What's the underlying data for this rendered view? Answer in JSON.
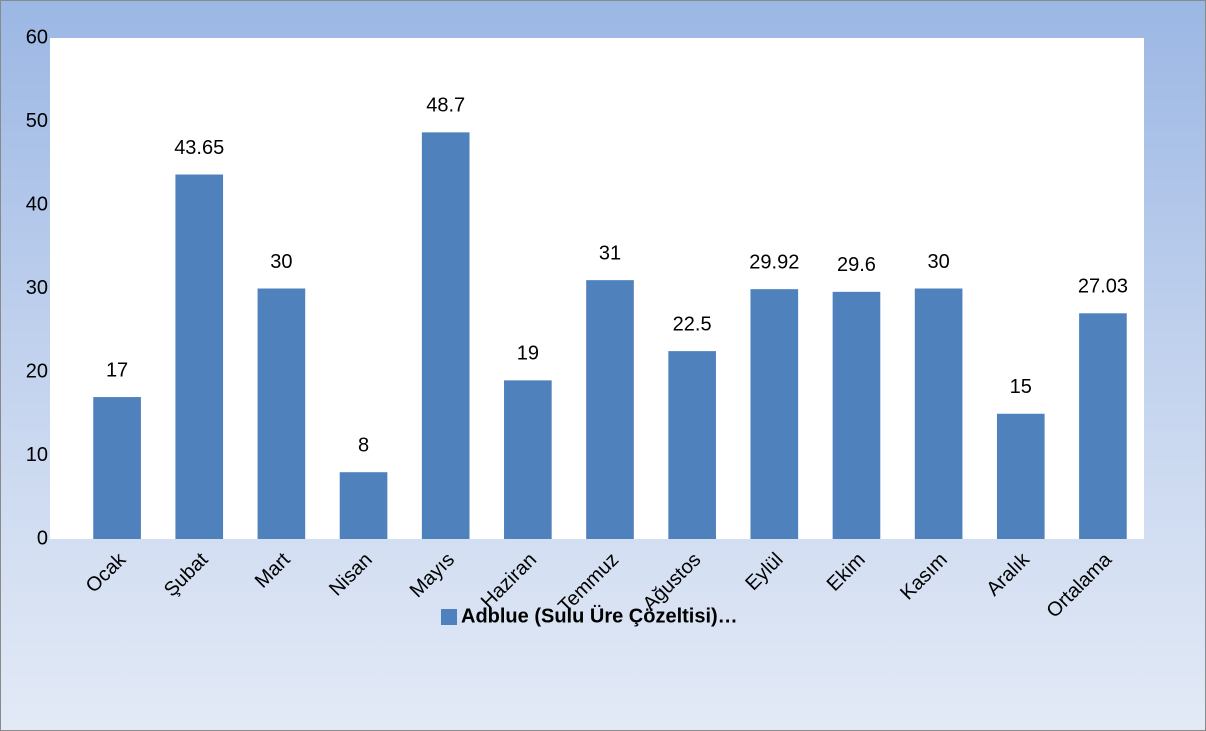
{
  "chart_data": {
    "type": "bar",
    "categories": [
      "Ocak",
      "Şubat",
      "Mart",
      "Nisan",
      "Mayıs",
      "Haziran",
      "Temmuz",
      "Ağustos",
      "Eylül",
      "Ekim",
      "Kasım",
      "Aralık",
      "Ortalama"
    ],
    "series": [
      {
        "name": "Adblue (Sulu Üre Çözeltisi)…",
        "color": "#4f81bd",
        "values": [
          17,
          43.65,
          30,
          8,
          48.7,
          19,
          31,
          22.5,
          29.92,
          29.6,
          30,
          15,
          27.03
        ]
      }
    ],
    "ylim": [
      0,
      60
    ],
    "yticks": [
      0,
      10,
      20,
      30,
      40,
      50,
      60
    ],
    "grid": false,
    "legend": "bottom"
  }
}
